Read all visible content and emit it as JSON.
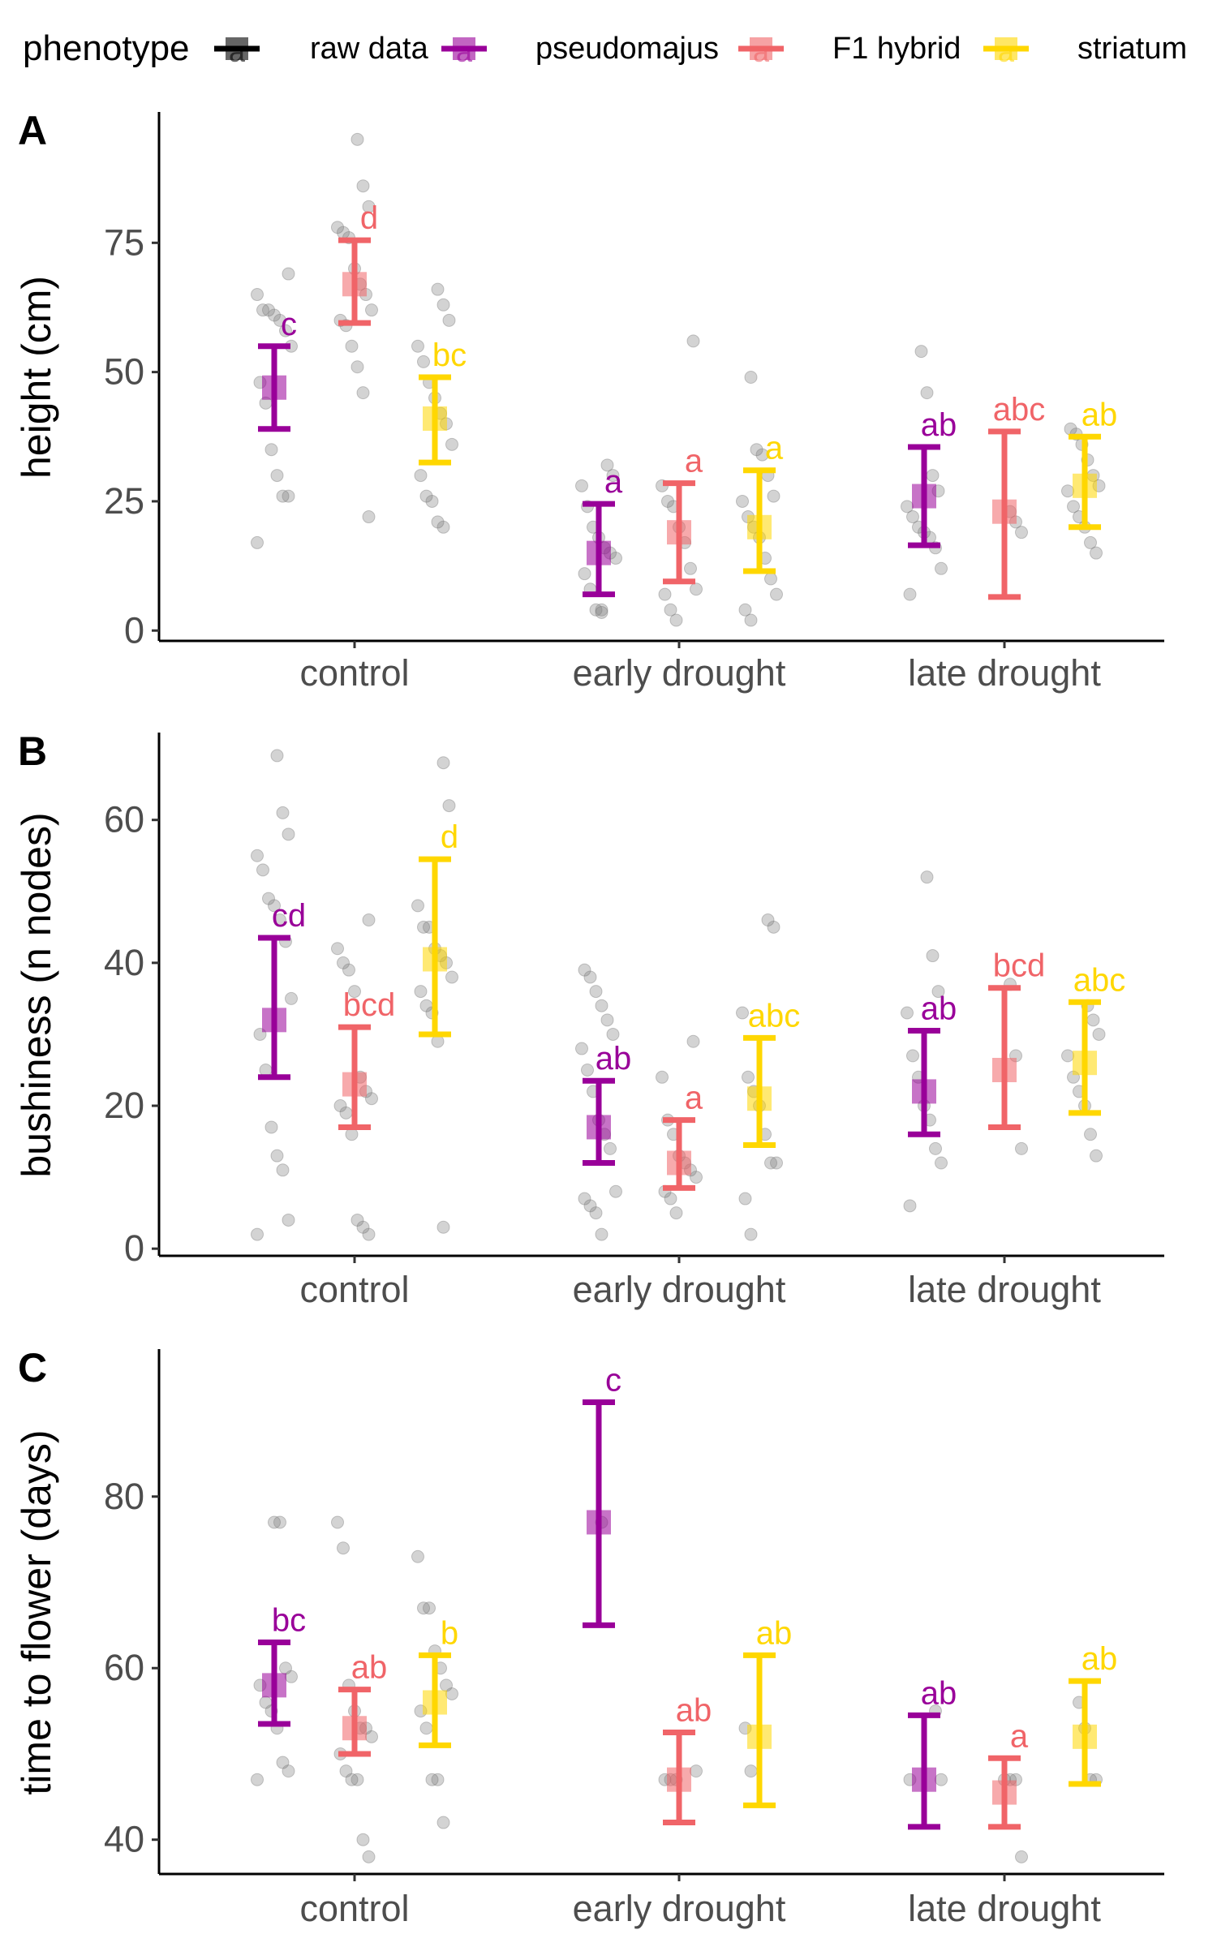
{
  "legend": {
    "title": "phenotype",
    "raw_label": "raw data",
    "key_letter": "a",
    "items": [
      {
        "label": "pseudomajus",
        "color": "#990099"
      },
      {
        "label": "F1 hybrid",
        "color": "#F06468"
      },
      {
        "label": "striatum",
        "color": "#FFD700"
      }
    ],
    "raw_color": "#000000"
  },
  "chart_data": [
    {
      "panel": "A",
      "type": "scatter",
      "ylabel": "height (cm)",
      "ylim": [
        -2,
        100
      ],
      "yticks": [
        0,
        25,
        50,
        75
      ],
      "categories": [
        "control",
        "early drought",
        "late drought"
      ],
      "series": [
        {
          "name": "pseudomajus",
          "mean": [
            47,
            15,
            26
          ],
          "lower": [
            39,
            7,
            16.5
          ],
          "upper": [
            55,
            24.5,
            35.5
          ],
          "letters": [
            "c",
            "a",
            "ab"
          ]
        },
        {
          "name": "F1 hybrid",
          "mean": [
            67,
            19,
            23
          ],
          "lower": [
            59.5,
            9.5,
            6.5
          ],
          "upper": [
            75.5,
            28.5,
            38.5
          ],
          "letters": [
            "d",
            "a",
            "abc"
          ]
        },
        {
          "name": "striatum",
          "mean": [
            41,
            20,
            28
          ],
          "lower": [
            32.5,
            11.5,
            20
          ],
          "upper": [
            49,
            31,
            37.5
          ],
          "letters": [
            "bc",
            "a",
            "ab"
          ]
        }
      ],
      "raw": [
        [
          [
            17,
            26,
            26,
            30,
            35,
            44,
            48,
            55,
            58,
            60,
            61,
            62,
            62,
            65,
            69
          ],
          [
            4,
            4,
            8,
            11,
            14,
            15,
            16,
            18,
            20,
            24,
            28,
            30,
            32,
            3.5
          ],
          [
            7,
            12,
            16,
            18,
            19,
            20,
            22,
            24,
            27,
            30,
            46,
            54
          ]
        ],
        [
          [
            22,
            46,
            51,
            55,
            59,
            60,
            62,
            65,
            67,
            70,
            76,
            77,
            78,
            82,
            86,
            95
          ],
          [
            2,
            4,
            7,
            8,
            12,
            17,
            20,
            24,
            25,
            28,
            56
          ],
          [
            19,
            21,
            23
          ]
        ],
        [
          [
            20,
            21,
            25,
            26,
            30,
            36,
            40,
            42,
            45,
            48,
            52,
            55,
            60,
            63,
            66
          ],
          [
            2,
            4,
            7,
            10,
            14,
            18,
            20,
            22,
            25,
            26,
            30,
            34,
            35,
            49
          ],
          [
            15,
            17,
            20,
            22,
            24,
            27,
            28,
            30,
            33,
            36,
            38,
            39
          ]
        ]
      ]
    },
    {
      "panel": "B",
      "type": "scatter",
      "ylabel": "bushiness (n nodes)",
      "ylim": [
        -1,
        72
      ],
      "yticks": [
        0,
        20,
        40,
        60
      ],
      "categories": [
        "control",
        "early drought",
        "late drought"
      ],
      "series": [
        {
          "name": "pseudomajus",
          "mean": [
            32,
            17,
            22
          ],
          "lower": [
            24,
            12,
            16
          ],
          "upper": [
            43.5,
            23.5,
            30.5
          ],
          "letters": [
            "cd",
            "ab",
            "ab"
          ]
        },
        {
          "name": "F1 hybrid",
          "mean": [
            23,
            12,
            25
          ],
          "lower": [
            17,
            8.5,
            17
          ],
          "upper": [
            31,
            18,
            36.5
          ],
          "letters": [
            "bcd",
            "a",
            "bcd"
          ]
        },
        {
          "name": "striatum",
          "mean": [
            40.5,
            21,
            26
          ],
          "lower": [
            30,
            14.5,
            19
          ],
          "upper": [
            54.5,
            29.5,
            34.5
          ],
          "letters": [
            "d",
            "abc",
            "abc"
          ]
        }
      ],
      "raw": [
        [
          [
            2,
            4,
            11,
            13,
            17,
            25,
            30,
            35,
            43,
            46,
            48,
            49,
            53,
            55,
            58,
            61,
            69
          ],
          [
            2,
            5,
            6,
            7,
            8,
            14,
            16,
            18,
            22,
            25,
            28,
            30,
            32,
            34,
            36,
            38,
            39
          ],
          [
            6,
            12,
            14,
            18,
            20,
            24,
            27,
            33,
            36,
            41,
            52
          ]
        ],
        [
          [
            2,
            3,
            4,
            16,
            19,
            20,
            21,
            22,
            24,
            36,
            39,
            40,
            42,
            46
          ],
          [
            5,
            7,
            8,
            10,
            11,
            12,
            13,
            16,
            18,
            24,
            29
          ],
          [
            14,
            27,
            37
          ]
        ],
        [
          [
            3,
            29,
            33,
            34,
            36,
            38,
            40,
            41,
            42,
            45,
            45,
            48,
            62,
            68
          ],
          [
            2,
            7,
            12,
            12,
            16,
            20,
            22,
            24,
            33,
            45,
            46
          ],
          [
            13,
            16,
            20,
            22,
            24,
            27,
            30,
            32,
            34
          ]
        ]
      ]
    },
    {
      "panel": "C",
      "type": "scatter",
      "ylabel": "time to flower (days)",
      "ylim": [
        36,
        97
      ],
      "yticks": [
        40,
        60,
        80
      ],
      "categories": [
        "control",
        "early drought",
        "late drought"
      ],
      "series": [
        {
          "name": "pseudomajus",
          "mean": [
            58,
            77,
            47
          ],
          "lower": [
            53.5,
            65,
            41.5
          ],
          "upper": [
            63,
            91,
            54.5
          ],
          "letters": [
            "bc",
            "c",
            "ab"
          ]
        },
        {
          "name": "F1 hybrid",
          "mean": [
            53,
            47,
            45.5
          ],
          "lower": [
            50,
            42,
            41.5
          ],
          "upper": [
            57.5,
            52.5,
            49.5
          ],
          "letters": [
            "ab",
            "ab",
            "a"
          ]
        },
        {
          "name": "striatum",
          "mean": [
            56,
            52,
            52
          ],
          "lower": [
            51,
            44,
            46.5
          ],
          "upper": [
            61.5,
            61.5,
            58.5
          ],
          "letters": [
            "b",
            "ab",
            "ab"
          ]
        }
      ],
      "raw": [
        [
          [
            47,
            48,
            49,
            53,
            55,
            56,
            58,
            59,
            60,
            77,
            77
          ],
          [
            77
          ],
          [
            47,
            47,
            55
          ]
        ],
        [
          [
            38,
            40,
            47,
            47,
            48,
            50,
            52,
            53,
            53,
            55,
            58,
            74,
            77
          ],
          [
            47,
            47,
            47,
            48
          ],
          [
            38,
            47,
            47,
            47
          ]
        ],
        [
          [
            42,
            47,
            47,
            53,
            55,
            57,
            58,
            60,
            62,
            67,
            67,
            73
          ],
          [
            48,
            53
          ],
          [
            47,
            47,
            53,
            56
          ]
        ]
      ]
    }
  ]
}
